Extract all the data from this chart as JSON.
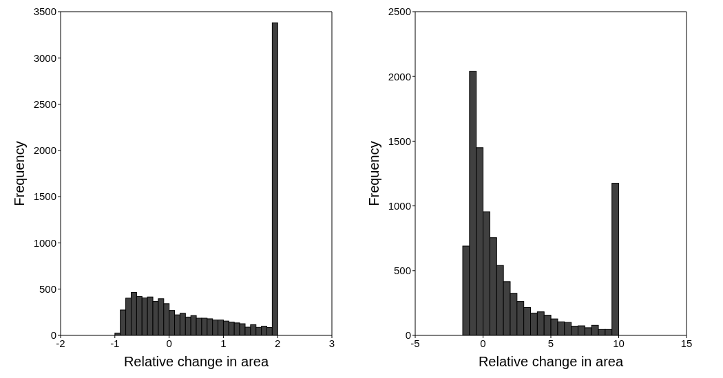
{
  "chart_data": [
    {
      "type": "histogram",
      "xlabel": "Relative change in area",
      "ylabel": "Frequency",
      "color": "#404040",
      "bins": [
        -1,
        -0.9,
        -0.8,
        -0.7,
        -0.6,
        -0.5,
        -0.4,
        -0.3,
        -0.2,
        -0.1,
        0,
        0.1,
        0.2,
        0.3,
        0.4,
        0.5,
        0.6,
        0.7,
        0.8,
        0.9,
        1,
        1.1,
        1.2,
        1.3,
        1.4,
        1.5,
        1.6,
        1.7,
        1.8,
        1.9,
        2
      ],
      "values": [
        24,
        275,
        403,
        465,
        420,
        406,
        415,
        367,
        396,
        343,
        270,
        222,
        239,
        198,
        215,
        186,
        186,
        179,
        167,
        167,
        155,
        143,
        135,
        126,
        89,
        116,
        87,
        99,
        85,
        3380
      ],
      "xlim": [
        -2,
        3
      ],
      "xticks": [
        -2,
        -1,
        0,
        1,
        2,
        3
      ],
      "ylim": [
        0,
        3500
      ],
      "yticks": [
        0,
        500,
        1000,
        1500,
        2000,
        2500,
        3000,
        3500
      ],
      "grid": false
    },
    {
      "type": "histogram",
      "xlabel": "Relative change in area",
      "ylabel": "Frequency",
      "color": "#404040",
      "bins": [
        -1.5,
        -1,
        -0.5,
        0,
        0.5,
        1,
        1.5,
        2,
        2.5,
        3,
        3.5,
        4,
        4.5,
        5,
        5.5,
        6,
        6.5,
        7,
        7.5,
        8,
        8.5,
        9,
        9.5,
        10
      ],
      "values": [
        690,
        2040,
        1450,
        955,
        755,
        540,
        415,
        325,
        262,
        215,
        172,
        182,
        156,
        127,
        105,
        100,
        71,
        74,
        59,
        78,
        46,
        46,
        1175
      ],
      "xlim": [
        -5,
        15
      ],
      "xticks": [
        -5,
        0,
        5,
        10,
        15
      ],
      "ylim": [
        0,
        2500
      ],
      "yticks": [
        0,
        500,
        1000,
        1500,
        2000,
        2500
      ],
      "grid": false
    }
  ]
}
